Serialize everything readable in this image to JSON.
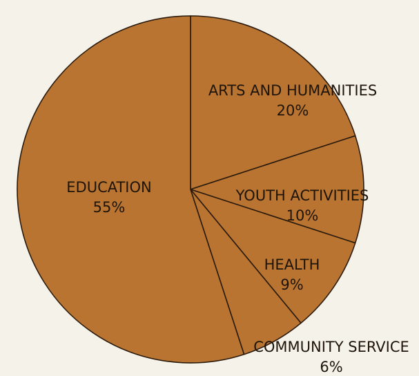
{
  "chart_data": {
    "type": "pie",
    "categories": [
      "ARTS AND HUMANITIES",
      "YOUTH ACTIVITIES",
      "HEALTH",
      "COMMUNITY SERVICE",
      "EDUCATION"
    ],
    "values": [
      20,
      10,
      9,
      6,
      55
    ],
    "value_labels": [
      "20%",
      "10%",
      "9%",
      "6%",
      "55%"
    ],
    "start_angle_deg": 0,
    "direction": "clockwise",
    "legend": "none",
    "colors": {
      "slice_fill": "#b87430",
      "slice_stroke": "#2a1a0c",
      "label": "#1e1409",
      "background": "#f5f2ea"
    }
  }
}
